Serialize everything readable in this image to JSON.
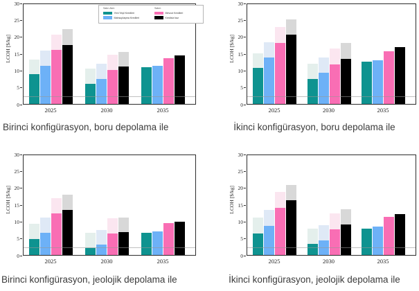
{
  "figure": {
    "ylabel": "LCOH [$/kg]",
    "unit": "$/kg",
    "note": "2x2 grid of grouped bar charts; pale bars show upper range of each cost estimate; thin gray reference line at 2 $/kg"
  },
  "colors": {
    "teal": "#0e9390",
    "teal_light": "#e4efec",
    "blue": "#6db1f7",
    "blue_light": "#dfe9f6",
    "pink": "#f96eb4",
    "pink_light": "#fbe6f0",
    "black": "#000000",
    "black_light": "#d8d8d8",
    "frame": "#2b2b2b",
    "reference_line": "#969696",
    "caption_text": "#3b3b3b"
  },
  "legend": {
    "visible_on": "first chart only",
    "groups": [
      {
        "header": "Satın Alım",
        "items": [
          {
            "label": "Yeni Yeşil Kredileri",
            "color_key": "teal"
          },
          {
            "label": "Mahsuplaşma Kredileri",
            "color_key": "blue"
          }
        ]
      },
      {
        "header": "Satım",
        "items": [
          {
            "label": "Mevcut Kredileri",
            "color_key": "pink"
          },
          {
            "label": "Kredisiz baz",
            "color_key": "black"
          }
        ]
      }
    ]
  },
  "chart_data": [
    {
      "type": "bar",
      "caption": "Birinci konfigürasyon, boru depolama ile",
      "ylabel": "LCOH [$/kg]",
      "ylim": [
        0,
        30
      ],
      "yticks": [
        0,
        5,
        10,
        15,
        20,
        25,
        30
      ],
      "categories": [
        "2025",
        "2030",
        "2035"
      ],
      "reference_line_y": 2,
      "grid": false,
      "series": [
        {
          "name": "Yeni Yeşil Kredileri",
          "color_key": "teal",
          "values": [
            8.8,
            6.0,
            10.9
          ],
          "range_max": [
            13.1,
            10.5,
            10.9
          ]
        },
        {
          "name": "Mahsuplaşma Kredileri",
          "color_key": "blue",
          "values": [
            11.3,
            7.4,
            11.4
          ],
          "range_max": [
            15.8,
            11.9,
            11.4
          ]
        },
        {
          "name": "Mevcut Kredileri",
          "color_key": "pink",
          "values": [
            16.0,
            10.0,
            13.6
          ],
          "range_max": [
            20.6,
            14.6,
            13.6
          ]
        },
        {
          "name": "Kredisiz baz",
          "color_key": "black",
          "values": [
            17.5,
            11.0,
            14.4
          ],
          "range_max": [
            22.1,
            15.4,
            14.4
          ]
        }
      ]
    },
    {
      "type": "bar",
      "caption": "İkinci konfigürasyon, boru depolama ile",
      "ylabel": "LCOH [$/kg]",
      "ylim": [
        0,
        30
      ],
      "yticks": [
        0,
        5,
        10,
        15,
        20,
        25,
        30
      ],
      "categories": [
        "2025",
        "2030",
        "2035"
      ],
      "reference_line_y": 2,
      "grid": false,
      "series": [
        {
          "name": "Yeni Yeşil Kredileri",
          "color_key": "teal",
          "values": [
            10.6,
            7.5,
            12.5
          ],
          "range_max": [
            15.1,
            12.0,
            12.5
          ]
        },
        {
          "name": "Mahsuplaşma Kredileri",
          "color_key": "blue",
          "values": [
            13.7,
            9.2,
            13.0
          ],
          "range_max": [
            18.3,
            13.7,
            13.0
          ]
        },
        {
          "name": "Mevcut Kredileri",
          "color_key": "pink",
          "values": [
            18.1,
            11.8,
            15.7
          ],
          "range_max": [
            22.9,
            16.5,
            15.7
          ]
        },
        {
          "name": "Kredisiz baz",
          "color_key": "black",
          "values": [
            20.6,
            13.4,
            16.8
          ],
          "range_max": [
            25.1,
            18.1,
            16.8
          ]
        }
      ]
    },
    {
      "type": "bar",
      "caption": "Birinci konfigürasyon, jeolojik depolama ile",
      "ylabel": "LCOH [$/kg]",
      "ylim": [
        0,
        30
      ],
      "yticks": [
        0,
        5,
        10,
        15,
        20,
        25,
        30
      ],
      "categories": [
        "2025",
        "2030",
        "2035"
      ],
      "reference_line_y": 2,
      "grid": false,
      "series": [
        {
          "name": "Yeni Yeşil Kredileri",
          "color_key": "teal",
          "values": [
            4.8,
            2.1,
            6.6
          ],
          "range_max": [
            9.3,
            6.6,
            6.6
          ]
        },
        {
          "name": "Mahsuplaşma Kredileri",
          "color_key": "blue",
          "values": [
            6.5,
            3.0,
            6.9
          ],
          "range_max": [
            11.0,
            7.4,
            6.9
          ]
        },
        {
          "name": "Mevcut Kredileri",
          "color_key": "pink",
          "values": [
            12.3,
            6.4,
            9.4
          ],
          "range_max": [
            16.8,
            10.8,
            9.4
          ]
        },
        {
          "name": "Kredisiz baz",
          "color_key": "black",
          "values": [
            13.4,
            6.8,
            9.9
          ],
          "range_max": [
            17.9,
            11.0,
            9.9
          ]
        }
      ]
    },
    {
      "type": "bar",
      "caption": "İkinci konfigürasyon, jeolojik depolama ile",
      "ylabel": "LCOH [$/kg]",
      "ylim": [
        0,
        30
      ],
      "yticks": [
        0,
        5,
        10,
        15,
        20,
        25,
        30
      ],
      "categories": [
        "2025",
        "2030",
        "2035"
      ],
      "reference_line_y": 2,
      "grid": false,
      "series": [
        {
          "name": "Yeni Yeşil Kredileri",
          "color_key": "teal",
          "values": [
            6.4,
            3.2,
            7.9
          ],
          "range_max": [
            11.0,
            7.9,
            7.9
          ]
        },
        {
          "name": "Mahsuplaşma Kredileri",
          "color_key": "blue",
          "values": [
            8.6,
            4.3,
            8.4
          ],
          "range_max": [
            13.4,
            8.8,
            8.4
          ]
        },
        {
          "name": "Mevcut Kredileri",
          "color_key": "pink",
          "values": [
            14.0,
            7.6,
            11.3
          ],
          "range_max": [
            18.6,
            12.3,
            11.3
          ]
        },
        {
          "name": "Kredisiz baz",
          "color_key": "black",
          "values": [
            16.2,
            9.1,
            12.2
          ],
          "range_max": [
            20.8,
            13.6,
            12.2
          ]
        }
      ]
    }
  ]
}
